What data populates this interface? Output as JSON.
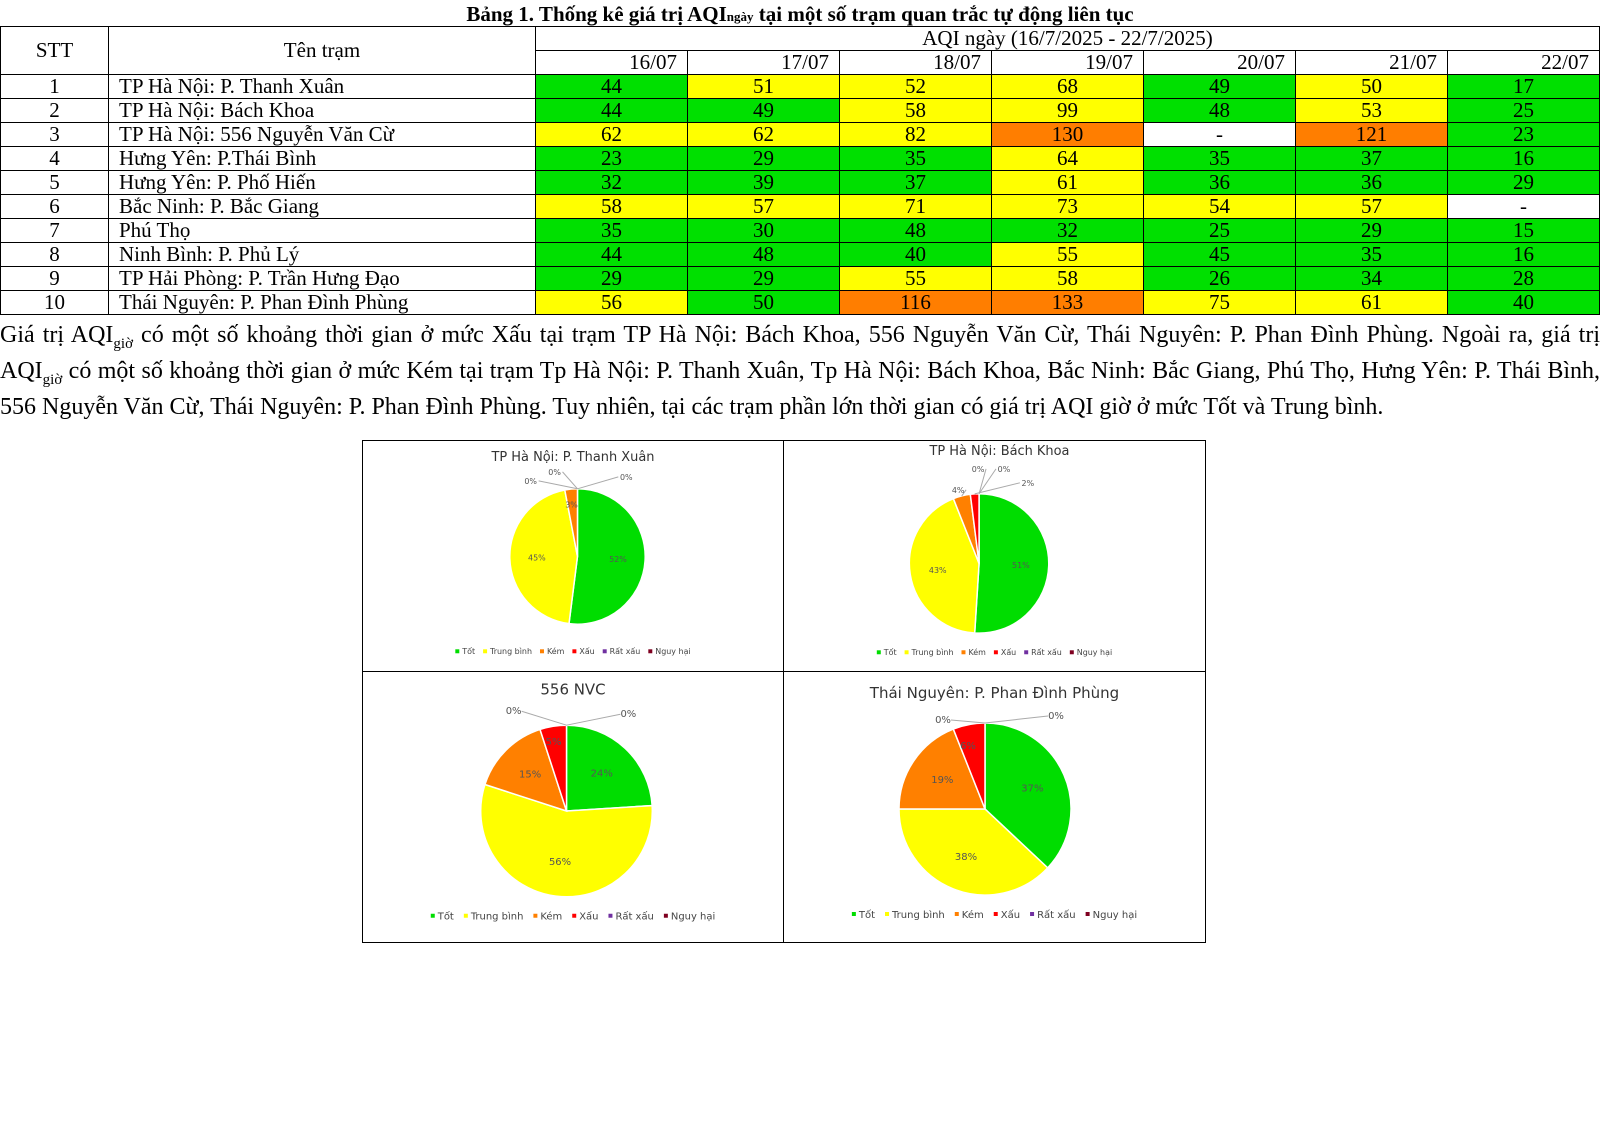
{
  "title": {
    "main": "Bảng 1. Thống kê giá trị AQI",
    "sub": "ngày",
    "rest": " tại một số trạm quan trắc tự động liên tục"
  },
  "table": {
    "headers": {
      "stt": "STT",
      "name": "Tên trạm",
      "group": "AQI ngày (16/7/2025 - 22/7/2025)"
    },
    "dates": [
      "16/07",
      "17/07",
      "18/07",
      "19/07",
      "20/07",
      "21/07",
      "22/07"
    ],
    "level_colors": {
      "g": "#00e000",
      "y": "#ffff00",
      "o": "#ff7e00",
      "w": "#ffffff"
    },
    "rows": [
      {
        "stt": "1",
        "name": "TP Hà Nội: P. Thanh Xuân",
        "values": [
          "44",
          "51",
          "52",
          "68",
          "49",
          "50",
          "17"
        ],
        "levels": [
          "g",
          "y",
          "y",
          "y",
          "g",
          "y",
          "g"
        ]
      },
      {
        "stt": "2",
        "name": "TP Hà Nội: Bách Khoa",
        "values": [
          "44",
          "49",
          "58",
          "99",
          "48",
          "53",
          "25"
        ],
        "levels": [
          "g",
          "g",
          "y",
          "y",
          "g",
          "y",
          "g"
        ]
      },
      {
        "stt": "3",
        "name": "TP Hà Nội: 556 Nguyễn Văn Cừ",
        "values": [
          "62",
          "62",
          "82",
          "130",
          "-",
          "121",
          "23"
        ],
        "levels": [
          "y",
          "y",
          "y",
          "o",
          "w",
          "o",
          "g"
        ]
      },
      {
        "stt": "4",
        "name": "Hưng Yên: P.Thái Bình",
        "values": [
          "23",
          "29",
          "35",
          "64",
          "35",
          "37",
          "16"
        ],
        "levels": [
          "g",
          "g",
          "g",
          "y",
          "g",
          "g",
          "g"
        ]
      },
      {
        "stt": "5",
        "name": "Hưng Yên: P. Phố Hiến",
        "values": [
          "32",
          "39",
          "37",
          "61",
          "36",
          "36",
          "29"
        ],
        "levels": [
          "g",
          "g",
          "g",
          "y",
          "g",
          "g",
          "g"
        ]
      },
      {
        "stt": "6",
        "name": "Bắc Ninh: P. Bắc Giang",
        "values": [
          "58",
          "57",
          "71",
          "73",
          "54",
          "57",
          "-"
        ],
        "levels": [
          "y",
          "y",
          "y",
          "y",
          "y",
          "y",
          "w"
        ]
      },
      {
        "stt": "7",
        "name": "Phú Thọ",
        "values": [
          "35",
          "30",
          "48",
          "32",
          "25",
          "29",
          "15"
        ],
        "levels": [
          "g",
          "g",
          "g",
          "g",
          "g",
          "g",
          "g"
        ]
      },
      {
        "stt": "8",
        "name": "Ninh Bình: P. Phủ Lý",
        "values": [
          "44",
          "48",
          "40",
          "55",
          "45",
          "35",
          "16"
        ],
        "levels": [
          "g",
          "g",
          "g",
          "y",
          "g",
          "g",
          "g"
        ]
      },
      {
        "stt": "9",
        "name": "TP Hải Phòng: P. Trần Hưng Đạo",
        "values": [
          "29",
          "29",
          "55",
          "58",
          "26",
          "34",
          "28"
        ],
        "levels": [
          "g",
          "g",
          "y",
          "y",
          "g",
          "g",
          "g"
        ]
      },
      {
        "stt": "10",
        "name": "Thái Nguyên: P. Phan Đình Phùng",
        "values": [
          "56",
          "50",
          "116",
          "133",
          "75",
          "61",
          "40"
        ],
        "levels": [
          "y",
          "g",
          "o",
          "o",
          "y",
          "y",
          "g"
        ]
      }
    ]
  },
  "paragraph": {
    "p1": " Giá trị AQI",
    "s1": "giờ",
    "p2": " có một số khoảng thời gian ở mức Xấu tại trạm TP Hà Nội: Bách Khoa, 556 Nguyễn Văn Cừ, Thái Nguyên: P. Phan Đình Phùng. Ngoài ra, giá trị AQI",
    "s2": "giờ",
    "p3": " có một số khoảng thời gian ở mức Kém tại trạm Tp Hà Nội: P. Thanh Xuân, Tp Hà Nội: Bách Khoa, Bắc Ninh: Bắc Giang, Phú Thọ, Hưng Yên: P. Thái Bình, 556 Nguyễn Văn Cừ, Thái Nguyên: P. Phan Đình Phùng. Tuy nhiên, tại các trạm phần lớn thời gian có giá trị AQI giờ ở mức Tốt và Trung bình."
  },
  "chart_data": [
    {
      "type": "pie",
      "title": "TP Hà Nội: P. Thanh Xuân",
      "categories": [
        "Tốt",
        "Trung bình",
        "Kém",
        "Xấu",
        "Rất xấu",
        "Nguy hại"
      ],
      "values": [
        52,
        45,
        3,
        0,
        0,
        0
      ],
      "unit": "%",
      "legend": "bottom"
    },
    {
      "type": "pie",
      "title": "TP Hà Nội: Bách Khoa",
      "categories": [
        "Tốt",
        "Trung bình",
        "Kém",
        "Xấu",
        "Rất xấu",
        "Nguy hại"
      ],
      "values": [
        51,
        43,
        4,
        2,
        0,
        0
      ],
      "unit": "%",
      "legend": "bottom"
    },
    {
      "type": "pie",
      "title": "556 NVC",
      "categories": [
        "Tốt",
        "Trung bình",
        "Kém",
        "Xấu",
        "Rất xấu",
        "Nguy hại"
      ],
      "values": [
        24,
        56,
        15,
        5,
        0,
        0
      ],
      "unit": "%",
      "legend": "bottom"
    },
    {
      "type": "pie",
      "title": "Thái Nguyên: P. Phan Đình Phùng",
      "categories": [
        "Tốt",
        "Trung bình",
        "Kém",
        "Xấu",
        "Rất xấu",
        "Nguy hại"
      ],
      "values": [
        37,
        38,
        19,
        6,
        0,
        0
      ],
      "unit": "%",
      "legend": "bottom"
    }
  ],
  "pie_colors": [
    "#00dd00",
    "#ffff00",
    "#ff8000",
    "#ff0000",
    "#7030a0",
    "#7f0020"
  ]
}
